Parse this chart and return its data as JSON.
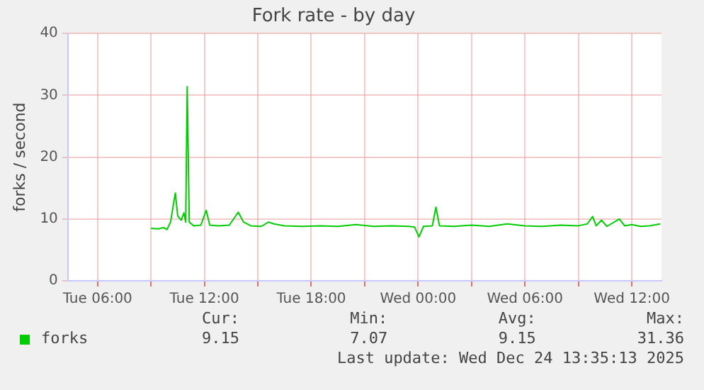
{
  "chart_data": {
    "type": "line",
    "title": "Fork rate - by day",
    "ylabel": "forks / second",
    "xlim": [
      "2025-12-23T04:20",
      "2025-12-24T13:40"
    ],
    "xticks": [
      {
        "value": "2025-12-23T06:00",
        "label": "Tue 06:00"
      },
      {
        "value": "2025-12-23T09:00",
        "label": null
      },
      {
        "value": "2025-12-23T12:00",
        "label": "Tue 12:00"
      },
      {
        "value": "2025-12-23T15:00",
        "label": null
      },
      {
        "value": "2025-12-23T18:00",
        "label": "Tue 18:00"
      },
      {
        "value": "2025-12-23T21:00",
        "label": null
      },
      {
        "value": "2025-12-24T00:00",
        "label": "Wed 00:00"
      },
      {
        "value": "2025-12-24T03:00",
        "label": null
      },
      {
        "value": "2025-12-24T06:00",
        "label": "Wed 06:00"
      },
      {
        "value": "2025-12-24T09:00",
        "label": null
      },
      {
        "value": "2025-12-24T12:00",
        "label": "Wed 12:00"
      }
    ],
    "ylim": [
      0,
      40
    ],
    "yticks": [
      0,
      10,
      20,
      30,
      40
    ],
    "grid": true,
    "legend": "bottom left",
    "marker": "none",
    "line_style": "solid",
    "series": [
      {
        "name": "forks",
        "color": "#00cc00",
        "x": [
          "2025-12-23T09:00",
          "2025-12-23T09:24",
          "2025-12-23T09:42",
          "2025-12-23T09:54",
          "2025-12-23T10:06",
          "2025-12-23T10:22",
          "2025-12-23T10:30",
          "2025-12-23T10:42",
          "2025-12-23T10:51",
          "2025-12-23T10:57",
          "2025-12-23T11:02",
          "2025-12-23T11:09",
          "2025-12-23T11:24",
          "2025-12-23T11:48",
          "2025-12-23T12:06",
          "2025-12-23T12:18",
          "2025-12-23T12:48",
          "2025-12-23T13:24",
          "2025-12-23T13:54",
          "2025-12-23T14:12",
          "2025-12-23T14:36",
          "2025-12-23T15:12",
          "2025-12-23T15:36",
          "2025-12-23T15:54",
          "2025-12-23T16:30",
          "2025-12-23T17:30",
          "2025-12-23T18:30",
          "2025-12-23T19:30",
          "2025-12-23T20:30",
          "2025-12-23T21:30",
          "2025-12-23T22:30",
          "2025-12-23T23:30",
          "2025-12-23T23:48",
          "2025-12-24T00:03",
          "2025-12-24T00:18",
          "2025-12-24T00:48",
          "2025-12-24T01:00",
          "2025-12-24T01:12",
          "2025-12-24T02:00",
          "2025-12-24T03:00",
          "2025-12-24T04:00",
          "2025-12-24T05:00",
          "2025-12-24T06:00",
          "2025-12-24T07:00",
          "2025-12-24T08:00",
          "2025-12-24T09:00",
          "2025-12-24T09:30",
          "2025-12-24T09:48",
          "2025-12-24T10:00",
          "2025-12-24T10:18",
          "2025-12-24T10:36",
          "2025-12-24T11:18",
          "2025-12-24T11:36",
          "2025-12-24T12:00",
          "2025-12-24T12:30",
          "2025-12-24T13:00",
          "2025-12-24T13:36"
        ],
        "values": [
          8.5,
          8.4,
          8.6,
          8.3,
          9.5,
          14.2,
          10.5,
          9.8,
          11,
          9.5,
          31.4,
          9.5,
          8.9,
          9.0,
          11.4,
          9.0,
          8.9,
          9.0,
          11.1,
          9.5,
          8.9,
          8.8,
          9.5,
          9.2,
          8.9,
          8.8,
          8.9,
          8.8,
          9.1,
          8.8,
          8.9,
          8.8,
          8.7,
          7.1,
          8.8,
          8.9,
          11.9,
          8.9,
          8.8,
          9.0,
          8.8,
          9.2,
          8.9,
          8.8,
          9.0,
          8.9,
          9.2,
          10.4,
          8.9,
          9.8,
          8.8,
          10.0,
          8.9,
          9.1,
          8.8,
          8.9,
          9.2
        ]
      }
    ],
    "annotations": [
      "Cur:",
      "9.15",
      "Min:",
      "7.07",
      "Avg:",
      "9.15",
      "Max:",
      "31.36",
      "Last update: Wed Dec 24 13:35:13 2025"
    ]
  }
}
